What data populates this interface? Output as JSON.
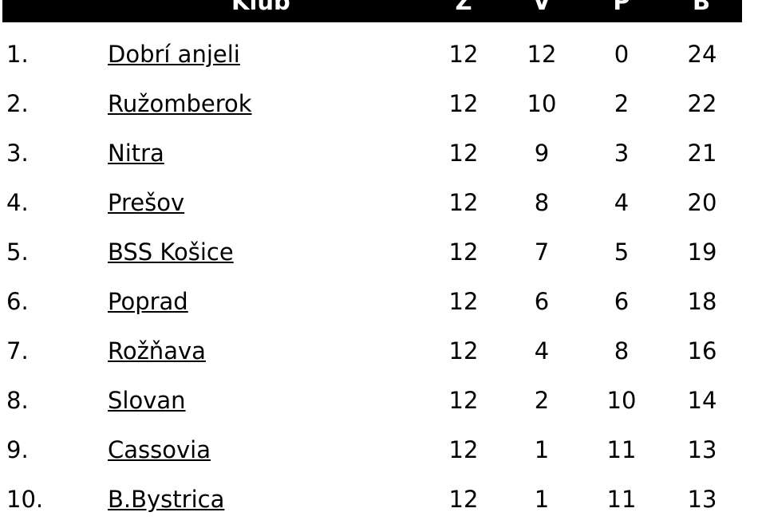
{
  "header": {
    "club": "Klub",
    "played": "Z",
    "won": "V",
    "lost": "P",
    "points": "B"
  },
  "rows": [
    {
      "rank": "1.",
      "club": "Dobrí anjeli",
      "z": "12",
      "v": "12",
      "p": "0",
      "b": "24"
    },
    {
      "rank": "2.",
      "club": "Ružomberok",
      "z": "12",
      "v": "10",
      "p": "2",
      "b": "22"
    },
    {
      "rank": "3.",
      "club": "Nitra",
      "z": "12",
      "v": "9",
      "p": "3",
      "b": "21"
    },
    {
      "rank": "4.",
      "club": "Prešov",
      "z": "12",
      "v": "8",
      "p": "4",
      "b": "20"
    },
    {
      "rank": "5.",
      "club": "BSS Košice",
      "z": "12",
      "v": "7",
      "p": "5",
      "b": "19"
    },
    {
      "rank": "6.",
      "club": "Poprad",
      "z": "12",
      "v": "6",
      "p": "6",
      "b": "18"
    },
    {
      "rank": "7.",
      "club": "Rožňava",
      "z": "12",
      "v": "4",
      "p": "8",
      "b": "16"
    },
    {
      "rank": "8.",
      "club": "Slovan",
      "z": "12",
      "v": "2",
      "p": "10",
      "b": "14"
    },
    {
      "rank": "9.",
      "club": "Cassovia",
      "z": "12",
      "v": "1",
      "p": "11",
      "b": "13"
    },
    {
      "rank": "10.",
      "club": "B.Bystrica",
      "z": "12",
      "v": "1",
      "p": "11",
      "b": "13"
    }
  ]
}
